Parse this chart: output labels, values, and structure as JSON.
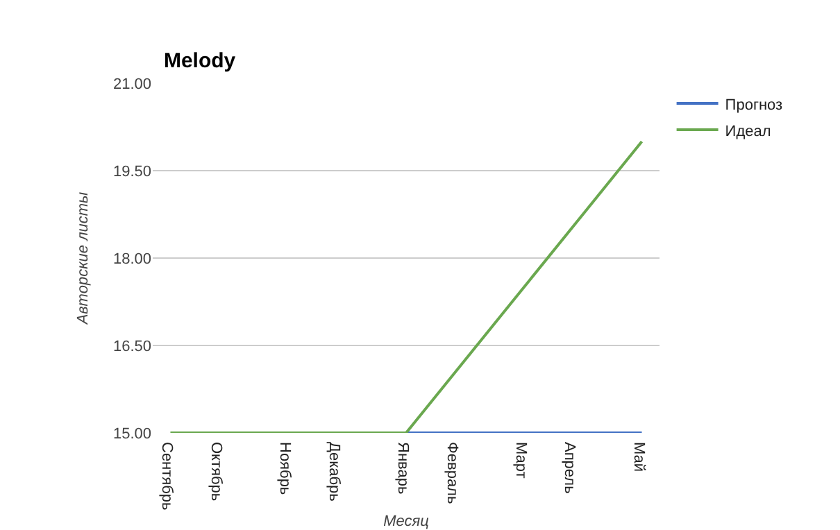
{
  "chart_data": {
    "type": "line",
    "title": "Melody",
    "xlabel": "Месяц",
    "ylabel": "Авторские листы",
    "categories": [
      "Сентябрь",
      "Октябрь",
      "Ноябрь",
      "Декабрь",
      "Январь",
      "Февраль",
      "Март",
      "Апрель",
      "Май"
    ],
    "series": [
      {
        "name": "Прогноз",
        "color": "#4472c4",
        "values": [
          null,
          null,
          null,
          null,
          15,
          15,
          15,
          15,
          15
        ]
      },
      {
        "name": "Идеал",
        "color": "#6aa84f",
        "values": [
          15,
          15,
          15,
          15,
          15,
          16.25,
          17.5,
          18.75,
          20
        ]
      }
    ],
    "ylim": [
      15,
      21
    ],
    "yticks": [
      {
        "value": 15,
        "label": "15.00"
      },
      {
        "value": 16.5,
        "label": "16.50"
      },
      {
        "value": 18,
        "label": "18.00"
      },
      {
        "value": 19.5,
        "label": "19.50"
      },
      {
        "value": 21,
        "label": "21.00"
      }
    ],
    "grid": "y",
    "legend": "right",
    "marker": "none",
    "line_style": "solid"
  }
}
